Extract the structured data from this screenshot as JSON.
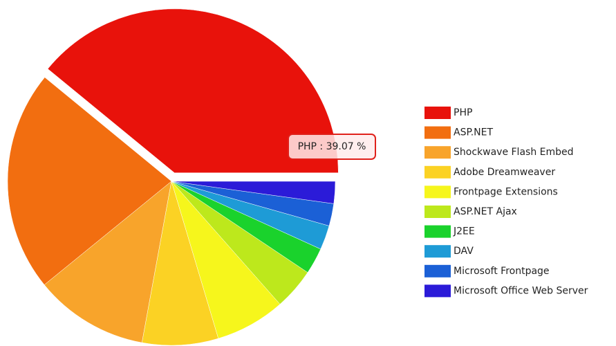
{
  "chart_data": {
    "type": "pie",
    "categories": [
      "PHP",
      "ASP.NET",
      "Shockwave Flash Embed",
      "Adobe Dreamweaver",
      "Frontpage Extensions",
      "ASP.NET Ajax",
      "J2EE",
      "DAV",
      "Microsoft Frontpage",
      "Microsoft Office Web Server"
    ],
    "values": [
      39.07,
      21.8,
      11.25,
      7.5,
      6.9,
      4.1,
      2.6,
      2.4,
      2.2,
      2.18
    ],
    "colors": [
      "#e8120b",
      "#f26e10",
      "#f8a42b",
      "#fbd224",
      "#f6f61c",
      "#bde81c",
      "#1ad22c",
      "#1e9bd6",
      "#1b60d6",
      "#2b1bd8"
    ],
    "exploded": 0,
    "tooltip": "PHP : 39.07 %"
  }
}
